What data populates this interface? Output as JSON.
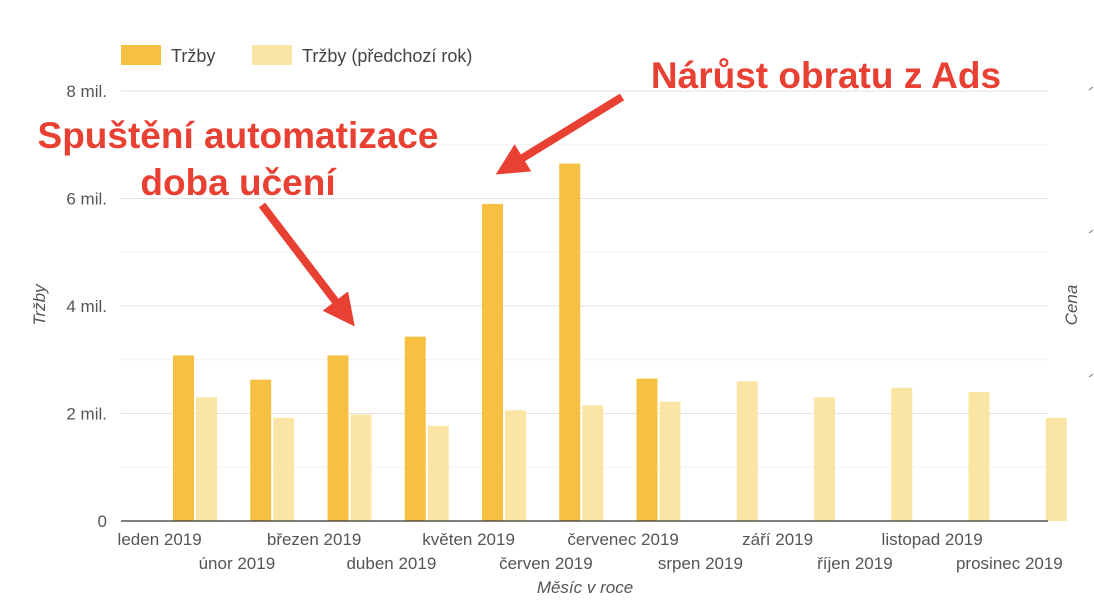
{
  "chart_data": {
    "type": "bar",
    "categories": [
      "leden 2019",
      "únor 2019",
      "březen 2019",
      "duben 2019",
      "květen 2019",
      "červen 2019",
      "červenec 2019",
      "srpen 2019",
      "září 2019",
      "říjen 2019",
      "listopad 2019",
      "prosinec 2019"
    ],
    "series": [
      {
        "name": "Tržby",
        "color": "#f6c143",
        "values": [
          3.08,
          2.63,
          3.08,
          3.43,
          5.9,
          6.65,
          2.65,
          null,
          null,
          null,
          null,
          null
        ]
      },
      {
        "name": "Tržby (předchozí rok)",
        "color": "#fbe5a5",
        "values": [
          2.3,
          1.92,
          1.98,
          1.77,
          2.06,
          2.15,
          2.22,
          2.6,
          2.3,
          2.48,
          2.4,
          1.92
        ]
      }
    ],
    "y_ticks": [
      {
        "value": 0,
        "label": "0"
      },
      {
        "value": 2,
        "label": "2 mil."
      },
      {
        "value": 4,
        "label": "4 mil."
      },
      {
        "value": 6,
        "label": "6 mil."
      },
      {
        "value": 8,
        "label": "8 mil."
      }
    ],
    "ylim": [
      0,
      8
    ],
    "xlabel": "Měsíc v roce",
    "ylabel": "Tržby",
    "y2label": "Cena",
    "grid": true,
    "legend_position": "top-left",
    "annotations": [
      {
        "id": "automation",
        "lines": [
          "Spuštění automatizace",
          "doba učení"
        ],
        "color": "#e84033",
        "points_to": "březen 2019"
      },
      {
        "id": "growth",
        "lines": [
          "Nárůst obratu z Ads"
        ],
        "color": "#e84033",
        "points_to": "květen 2019"
      }
    ]
  }
}
